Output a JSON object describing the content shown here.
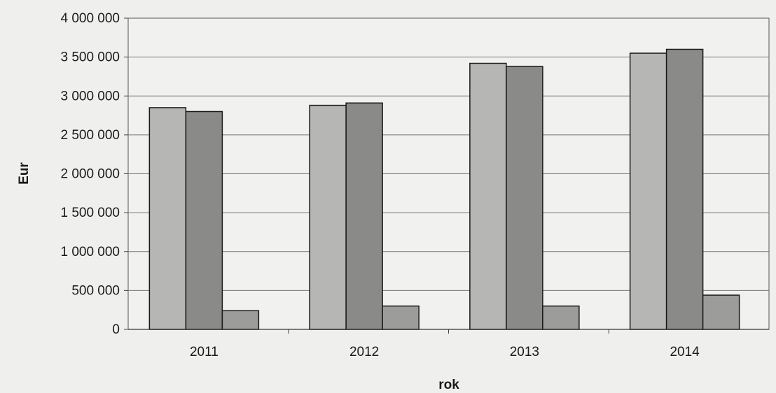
{
  "chart_data": {
    "type": "bar",
    "title": "",
    "xlabel": "rok",
    "ylabel": "Eur",
    "categories": [
      "2011",
      "2012",
      "2013",
      "2014"
    ],
    "series": [
      {
        "values": [
          2850000,
          2880000,
          3420000,
          3550000
        ],
        "color": "#b6b6b4"
      },
      {
        "values": [
          2800000,
          2910000,
          3380000,
          3600000
        ],
        "color": "#8a8a88"
      },
      {
        "values": [
          240000,
          300000,
          300000,
          440000
        ],
        "color": "#9c9c9a"
      }
    ],
    "ylim": [
      0,
      4000000
    ],
    "yticks": [
      0,
      500000,
      1000000,
      1500000,
      2000000,
      2500000,
      3000000,
      3500000,
      4000000
    ],
    "ytick_labels": [
      "0",
      "500 000",
      "1 000 000",
      "1 500 000",
      "2 000 000",
      "2 500 000",
      "3 000 000",
      "3 500 000",
      "4 000 000"
    ],
    "grid": true,
    "legend": "none"
  }
}
